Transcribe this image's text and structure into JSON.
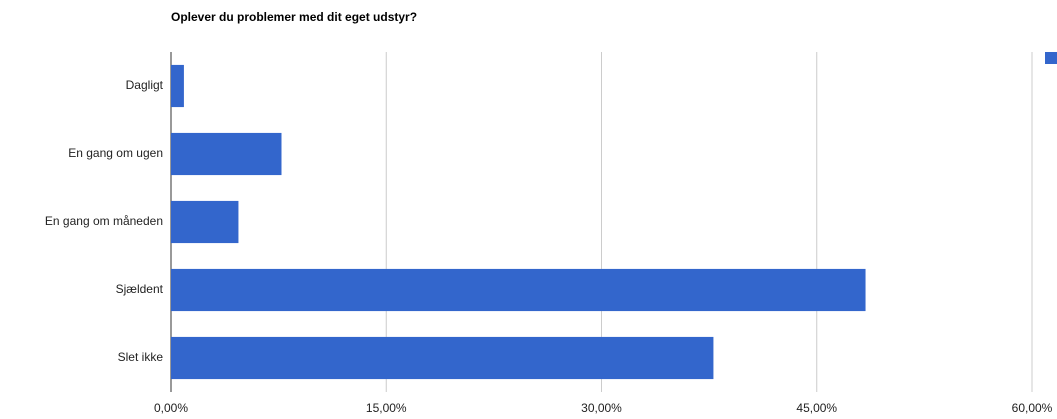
{
  "chart_data": {
    "type": "bar",
    "orientation": "horizontal",
    "title": "Oplever du problemer med dit eget udstyr?",
    "categories": [
      "Dagligt",
      "En gang om ugen",
      "En gang om måneden",
      "Sjældent",
      "Slet ikke"
    ],
    "values": [
      0.9,
      7.7,
      4.7,
      48.4,
      37.8
    ],
    "color": "#3366cc",
    "xlim": [
      0,
      60
    ],
    "xticks": [
      {
        "value": 0,
        "label": "0,00%"
      },
      {
        "value": 15,
        "label": "15,00%"
      },
      {
        "value": 30,
        "label": "30,00%"
      },
      {
        "value": 45,
        "label": "45,00%"
      },
      {
        "value": 60,
        "label": "60,00%"
      }
    ],
    "grid": true
  }
}
